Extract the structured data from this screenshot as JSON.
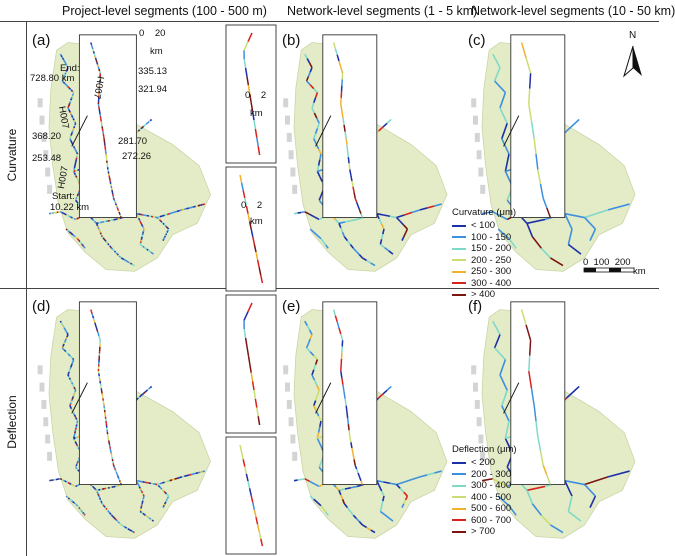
{
  "headers": {
    "col1": "Project-level segments (100 - 500 m)",
    "col2": "Network-level segments (1 - 5 km)",
    "col3": "Network-level segments (10 - 50 km)"
  },
  "row_labels": {
    "top": "Curvature",
    "bottom": "Deflection"
  },
  "panels": [
    "(a)",
    "(b)",
    "(c)",
    "(d)",
    "(e)",
    "(f)"
  ],
  "annotations": {
    "end": "End:",
    "end_km": "728.80 km",
    "start": "Start:",
    "start_km": "10.22 km",
    "h007_upper": "H007",
    "h007_mid": "H007",
    "h007_lower": "H007",
    "k368": "368.20",
    "k253": "253.48",
    "k335": "335.13",
    "k321": "321.94",
    "k281": "281.70",
    "k272": "272.26"
  },
  "scales": {
    "inset_small": "0    20",
    "inset_small_unit": "km",
    "zoom_a": "0    2",
    "zoom_a_unit": "km",
    "zoom_b": "0    2",
    "zoom_b_unit": "km",
    "main": "0  100  200",
    "main_unit": "km"
  },
  "north": "N",
  "colors": {
    "region": "#e3ecc6",
    "region_edge": "#c9d6a6",
    "ocean_islands": "#d4d4d4",
    "network_base": "#5b8fd6"
  },
  "curvature_legend": {
    "title": "Curvature (μm)",
    "items": [
      {
        "label": "< 100",
        "color": "#1c2fa8"
      },
      {
        "label": "100 - 150",
        "color": "#3d8fe0"
      },
      {
        "label": "150 - 200",
        "color": "#7fd9c9"
      },
      {
        "label": "200 - 250",
        "color": "#c8de72"
      },
      {
        "label": "250 - 300",
        "color": "#f0b22c"
      },
      {
        "label": "300 - 400",
        "color": "#d8221c"
      },
      {
        "label": "> 400",
        "color": "#7a1512"
      }
    ]
  },
  "deflection_legend": {
    "title": "Deflection (μm)",
    "items": [
      {
        "label": "< 200",
        "color": "#1c2fa8"
      },
      {
        "label": "200 - 300",
        "color": "#3d8fe0"
      },
      {
        "label": "300 - 400",
        "color": "#7fd9c9"
      },
      {
        "label": "400 - 500",
        "color": "#c8de72"
      },
      {
        "label": "500 - 600",
        "color": "#f0b22c"
      },
      {
        "label": "600 - 700",
        "color": "#d8221c"
      },
      {
        "label": "> 700",
        "color": "#7a1512"
      }
    ]
  }
}
